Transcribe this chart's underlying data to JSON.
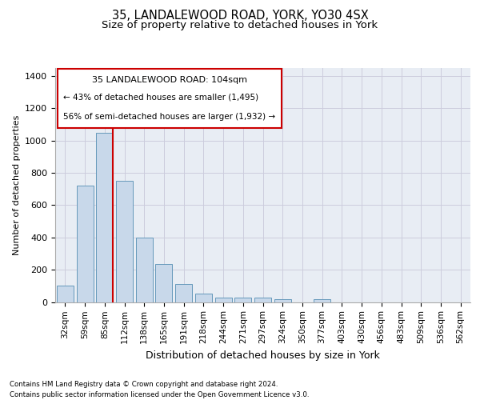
{
  "title1": "35, LANDALEWOOD ROAD, YORK, YO30 4SX",
  "title2": "Size of property relative to detached houses in York",
  "xlabel": "Distribution of detached houses by size in York",
  "ylabel": "Number of detached properties",
  "categories": [
    "32sqm",
    "59sqm",
    "85sqm",
    "112sqm",
    "138sqm",
    "165sqm",
    "191sqm",
    "218sqm",
    "244sqm",
    "271sqm",
    "297sqm",
    "324sqm",
    "350sqm",
    "377sqm",
    "403sqm",
    "430sqm",
    "456sqm",
    "483sqm",
    "509sqm",
    "536sqm",
    "562sqm"
  ],
  "bar_values": [
    100,
    720,
    1050,
    750,
    400,
    235,
    110,
    50,
    25,
    25,
    25,
    15,
    0,
    15,
    0,
    0,
    0,
    0,
    0,
    0,
    0
  ],
  "bar_color": "#c8d8ea",
  "bar_edgecolor": "#6699bb",
  "grid_color": "#ccccdd",
  "bg_color": "#e8edf4",
  "property_label": "35 LANDALEWOOD ROAD: 104sqm",
  "annotation_line1": "← 43% of detached houses are smaller (1,495)",
  "annotation_line2": "56% of semi-detached houses are larger (1,932) →",
  "vline_x": 2.42,
  "vline_color": "#cc0000",
  "annotation_box_edgecolor": "#cc0000",
  "ylim": [
    0,
    1450
  ],
  "yticks": [
    0,
    200,
    400,
    600,
    800,
    1000,
    1200,
    1400
  ],
  "footer1": "Contains HM Land Registry data © Crown copyright and database right 2024.",
  "footer2": "Contains public sector information licensed under the Open Government Licence v3.0.",
  "title1_fontsize": 10.5,
  "title2_fontsize": 9.5,
  "ylabel_fontsize": 8,
  "xlabel_fontsize": 9
}
